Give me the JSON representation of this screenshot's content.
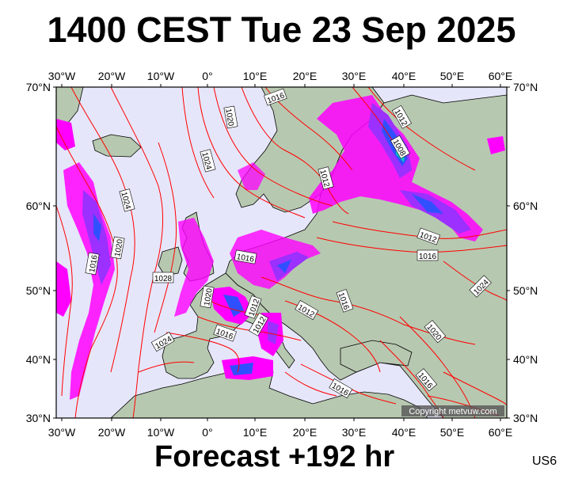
{
  "title": "1400 CEST Tue 23 Sep 2025",
  "footer": "Forecast +192 hr",
  "model_code": "US6",
  "copyright": "Copyright metvuw.com",
  "longitude_labels": [
    "30°W",
    "20°W",
    "10°W",
    "0°",
    "10°E",
    "20°E",
    "30°E",
    "40°E",
    "50°E",
    "60°E"
  ],
  "latitude_labels": [
    "70°N",
    "60°N",
    "50°N",
    "40°N",
    "30°N"
  ],
  "isobar_labels": [
    "1020",
    "1024",
    "1016",
    "1012",
    "1008",
    "1012",
    "1024",
    "1016",
    "1020",
    "1016",
    "1028",
    "1012",
    "1020",
    "1016",
    "1012",
    "1016",
    "1012",
    "1012",
    "1016",
    "1024",
    "1020",
    "1024",
    "1016",
    "1016"
  ],
  "colors": {
    "sea": "#e6e6fa",
    "land": "#b7c8b0",
    "isobar": "#ff0000",
    "precip_light": "#ff00ff",
    "precip_mid": "#9b30ff",
    "precip_heavy": "#3050ff",
    "precip_extreme": "#00c8c8"
  }
}
